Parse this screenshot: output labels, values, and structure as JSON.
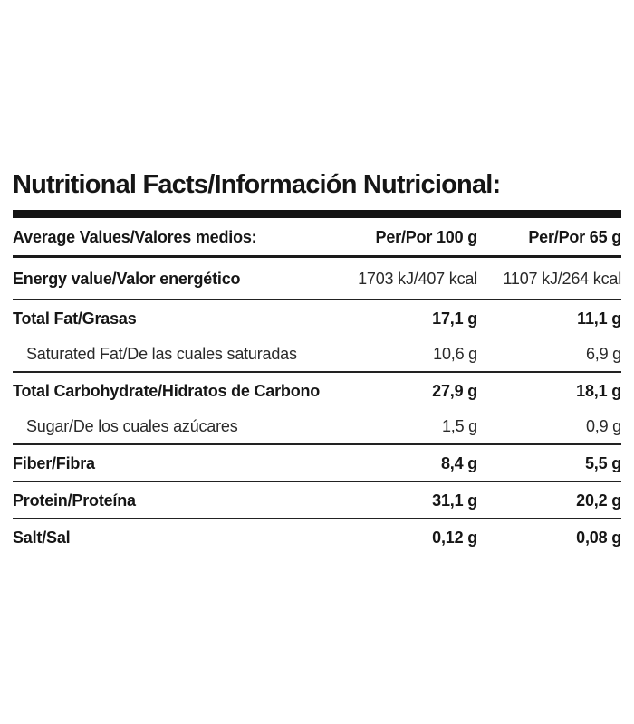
{
  "title": "Nutritional Facts/Información Nutricional:",
  "table": {
    "header": {
      "label": "Average Values/Valores medios:",
      "per100": "Per/Por 100 g",
      "per65": "Per/Por 65 g"
    },
    "rows": [
      {
        "label": "Energy value/Valor energético",
        "per100": "1703 kJ/407 kcal",
        "per65": "1107 kJ/264 kcal"
      },
      {
        "label": "Total Fat/Grasas",
        "per100": "17,1 g",
        "per65": "11,1 g"
      },
      {
        "label": "Saturated Fat/De las cuales saturadas",
        "per100": "10,6 g",
        "per65": "6,9 g"
      },
      {
        "label": "Total Carbohydrate/Hidratos de Carbono",
        "per100": "27,9 g",
        "per65": "18,1 g"
      },
      {
        "label": "Sugar/De los cuales azúcares",
        "per100": "1,5 g",
        "per65": "0,9 g"
      },
      {
        "label": "Fiber/Fibra",
        "per100": "8,4 g",
        "per65": "5,5 g"
      },
      {
        "label": "Protein/Proteína",
        "per100": "31,1 g",
        "per65": "20,2 g"
      },
      {
        "label": "Salt/Sal",
        "per100": "0,12 g",
        "per65": "0,08 g"
      }
    ]
  },
  "colors": {
    "text": "#1a1a1a",
    "divider_bar": "#141414",
    "background": "#ffffff"
  }
}
